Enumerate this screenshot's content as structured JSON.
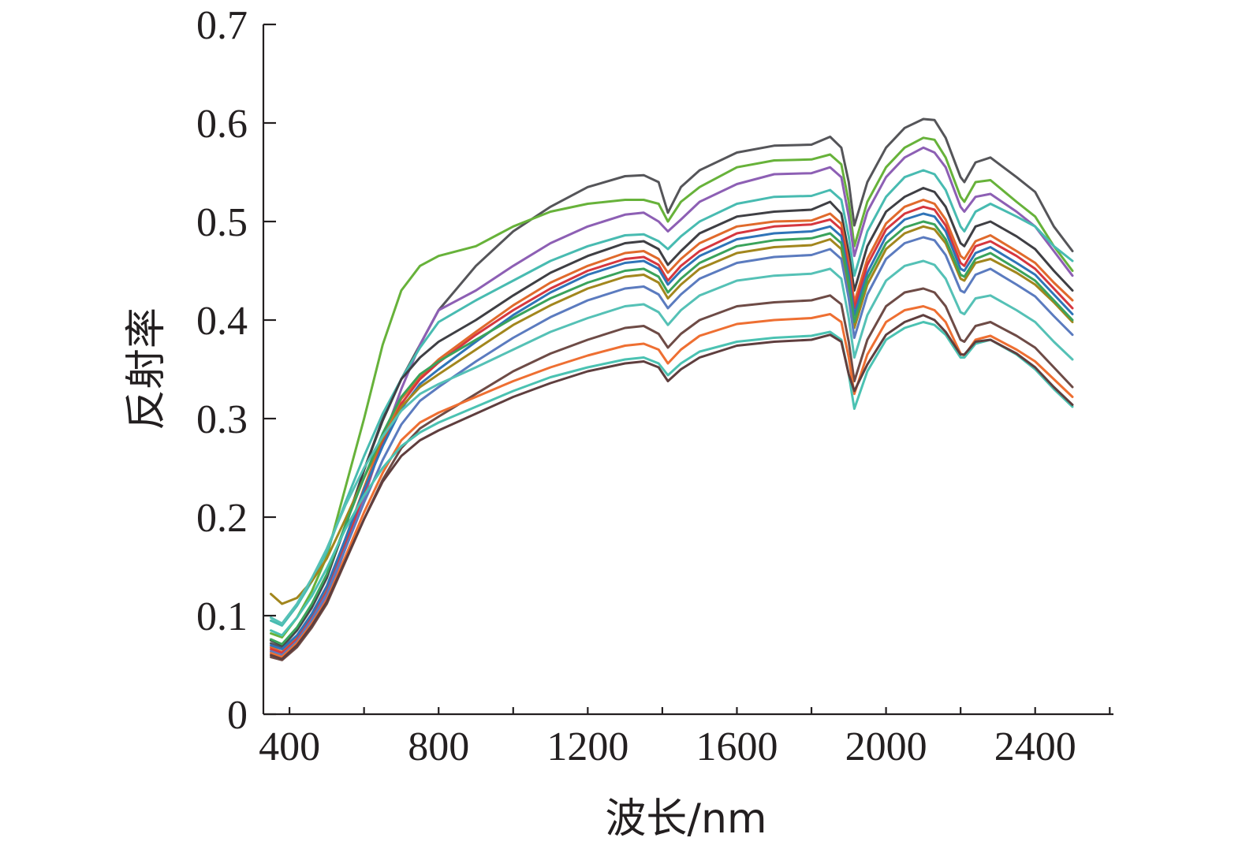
{
  "chart_data": {
    "type": "line",
    "title": "",
    "xlabel": "波长/nm",
    "ylabel": "反射率",
    "xlim": [
      330,
      2610
    ],
    "ylim": [
      0,
      0.7
    ],
    "x_tick_labels": [
      "400",
      "800",
      "1200",
      "1600",
      "2000",
      "2400"
    ],
    "x_tick_values": [
      400,
      800,
      1200,
      1600,
      2000,
      2400
    ],
    "x_minor_tick_values": [
      600,
      1000,
      1400,
      1800,
      2200,
      2600
    ],
    "y_tick_labels": [
      "0",
      "0.1",
      "0.2",
      "0.3",
      "0.4",
      "0.5",
      "0.6",
      "0.7"
    ],
    "y_tick_values": [
      0,
      0.1,
      0.2,
      0.3,
      0.4,
      0.5,
      0.6,
      0.7
    ],
    "grid": false,
    "legend": "none",
    "x": [
      350,
      380,
      420,
      460,
      500,
      550,
      600,
      650,
      700,
      750,
      800,
      900,
      1000,
      1100,
      1200,
      1300,
      1350,
      1390,
      1415,
      1450,
      1500,
      1600,
      1700,
      1800,
      1850,
      1880,
      1900,
      1915,
      1950,
      2000,
      2050,
      2100,
      2130,
      2160,
      2200,
      2210,
      2240,
      2280,
      2350,
      2400,
      2450,
      2500
    ],
    "series": [
      {
        "color": "#555559",
        "values": [
          0.072,
          0.068,
          0.085,
          0.108,
          0.138,
          0.192,
          0.248,
          0.3,
          0.34,
          0.375,
          0.41,
          0.455,
          0.49,
          0.515,
          0.535,
          0.546,
          0.547,
          0.54,
          0.509,
          0.535,
          0.552,
          0.57,
          0.577,
          0.578,
          0.586,
          0.575,
          0.54,
          0.496,
          0.54,
          0.575,
          0.595,
          0.604,
          0.603,
          0.585,
          0.545,
          0.54,
          0.56,
          0.565,
          0.545,
          0.53,
          0.495,
          0.47
        ]
      },
      {
        "color": "#67b23a",
        "values": [
          0.082,
          0.078,
          0.098,
          0.125,
          0.16,
          0.23,
          0.3,
          0.375,
          0.43,
          0.455,
          0.465,
          0.475,
          0.495,
          0.51,
          0.518,
          0.522,
          0.522,
          0.518,
          0.5,
          0.52,
          0.535,
          0.555,
          0.562,
          0.563,
          0.568,
          0.558,
          0.52,
          0.475,
          0.52,
          0.555,
          0.575,
          0.585,
          0.583,
          0.565,
          0.525,
          0.52,
          0.54,
          0.542,
          0.52,
          0.505,
          0.475,
          0.45
        ]
      },
      {
        "color": "#8d5fb4",
        "values": [
          0.062,
          0.058,
          0.072,
          0.092,
          0.118,
          0.168,
          0.22,
          0.278,
          0.33,
          0.375,
          0.41,
          0.43,
          0.455,
          0.478,
          0.495,
          0.507,
          0.509,
          0.5,
          0.49,
          0.502,
          0.52,
          0.538,
          0.548,
          0.549,
          0.555,
          0.545,
          0.505,
          0.465,
          0.51,
          0.545,
          0.565,
          0.575,
          0.57,
          0.555,
          0.515,
          0.51,
          0.525,
          0.528,
          0.51,
          0.495,
          0.47,
          0.445
        ]
      },
      {
        "color": "#48bbb1",
        "values": [
          0.095,
          0.09,
          0.11,
          0.135,
          0.165,
          0.215,
          0.262,
          0.305,
          0.34,
          0.372,
          0.398,
          0.42,
          0.44,
          0.46,
          0.475,
          0.486,
          0.487,
          0.48,
          0.472,
          0.485,
          0.5,
          0.518,
          0.525,
          0.526,
          0.532,
          0.522,
          0.485,
          0.445,
          0.49,
          0.525,
          0.545,
          0.552,
          0.548,
          0.532,
          0.495,
          0.49,
          0.51,
          0.518,
          0.505,
          0.495,
          0.475,
          0.46
        ]
      },
      {
        "color": "#3f3f44",
        "values": [
          0.075,
          0.07,
          0.086,
          0.11,
          0.14,
          0.19,
          0.248,
          0.298,
          0.34,
          0.362,
          0.378,
          0.4,
          0.425,
          0.448,
          0.465,
          0.478,
          0.48,
          0.472,
          0.456,
          0.47,
          0.488,
          0.505,
          0.51,
          0.512,
          0.52,
          0.508,
          0.468,
          0.43,
          0.475,
          0.51,
          0.525,
          0.534,
          0.53,
          0.515,
          0.478,
          0.475,
          0.495,
          0.5,
          0.485,
          0.472,
          0.45,
          0.43
        ]
      },
      {
        "color": "#e06a2c",
        "values": [
          0.068,
          0.063,
          0.078,
          0.1,
          0.128,
          0.178,
          0.23,
          0.28,
          0.32,
          0.342,
          0.36,
          0.388,
          0.415,
          0.438,
          0.455,
          0.468,
          0.47,
          0.462,
          0.448,
          0.462,
          0.478,
          0.495,
          0.5,
          0.501,
          0.508,
          0.498,
          0.458,
          0.418,
          0.462,
          0.498,
          0.515,
          0.522,
          0.518,
          0.502,
          0.465,
          0.462,
          0.48,
          0.486,
          0.47,
          0.458,
          0.438,
          0.42
        ]
      },
      {
        "color": "#d6373f",
        "values": [
          0.066,
          0.062,
          0.076,
          0.098,
          0.124,
          0.172,
          0.225,
          0.275,
          0.315,
          0.34,
          0.357,
          0.385,
          0.41,
          0.432,
          0.45,
          0.462,
          0.464,
          0.456,
          0.44,
          0.455,
          0.47,
          0.488,
          0.495,
          0.497,
          0.502,
          0.492,
          0.452,
          0.412,
          0.456,
          0.492,
          0.508,
          0.515,
          0.512,
          0.496,
          0.458,
          0.455,
          0.475,
          0.48,
          0.465,
          0.452,
          0.432,
          0.412
        ]
      },
      {
        "color": "#2f74b8",
        "values": [
          0.07,
          0.066,
          0.08,
          0.102,
          0.13,
          0.178,
          0.228,
          0.272,
          0.31,
          0.335,
          0.35,
          0.378,
          0.405,
          0.428,
          0.446,
          0.458,
          0.46,
          0.452,
          0.436,
          0.45,
          0.465,
          0.482,
          0.488,
          0.49,
          0.495,
          0.485,
          0.445,
          0.405,
          0.448,
          0.485,
          0.502,
          0.508,
          0.505,
          0.49,
          0.452,
          0.45,
          0.468,
          0.474,
          0.458,
          0.446,
          0.426,
          0.406
        ]
      },
      {
        "color": "#a2861d",
        "values": [
          0.122,
          0.112,
          0.118,
          0.135,
          0.158,
          0.198,
          0.24,
          0.28,
          0.312,
          0.332,
          0.345,
          0.37,
          0.395,
          0.415,
          0.432,
          0.444,
          0.446,
          0.438,
          0.422,
          0.436,
          0.452,
          0.468,
          0.474,
          0.476,
          0.482,
          0.472,
          0.432,
          0.392,
          0.436,
          0.472,
          0.488,
          0.495,
          0.492,
          0.478,
          0.442,
          0.44,
          0.458,
          0.462,
          0.448,
          0.436,
          0.418,
          0.398
        ]
      },
      {
        "color": "#3aa35b",
        "values": [
          0.076,
          0.071,
          0.088,
          0.112,
          0.142,
          0.192,
          0.24,
          0.285,
          0.322,
          0.345,
          0.358,
          0.38,
          0.402,
          0.422,
          0.438,
          0.45,
          0.452,
          0.444,
          0.428,
          0.442,
          0.458,
          0.475,
          0.481,
          0.483,
          0.488,
          0.478,
          0.438,
          0.398,
          0.442,
          0.478,
          0.494,
          0.5,
          0.497,
          0.482,
          0.446,
          0.444,
          0.462,
          0.468,
          0.452,
          0.44,
          0.42,
          0.4
        ]
      },
      {
        "color": "#5b7bbf",
        "values": [
          0.064,
          0.06,
          0.074,
          0.096,
          0.122,
          0.168,
          0.215,
          0.258,
          0.294,
          0.318,
          0.332,
          0.358,
          0.382,
          0.403,
          0.42,
          0.432,
          0.434,
          0.426,
          0.412,
          0.426,
          0.442,
          0.458,
          0.464,
          0.466,
          0.472,
          0.462,
          0.422,
          0.382,
          0.426,
          0.462,
          0.478,
          0.484,
          0.481,
          0.466,
          0.43,
          0.428,
          0.446,
          0.452,
          0.436,
          0.424,
          0.404,
          0.385
        ]
      },
      {
        "color": "#55c1b6",
        "values": [
          0.098,
          0.092,
          0.112,
          0.138,
          0.168,
          0.212,
          0.25,
          0.282,
          0.308,
          0.325,
          0.335,
          0.352,
          0.37,
          0.388,
          0.402,
          0.414,
          0.416,
          0.408,
          0.395,
          0.41,
          0.425,
          0.44,
          0.445,
          0.447,
          0.452,
          0.442,
          0.402,
          0.362,
          0.405,
          0.44,
          0.455,
          0.46,
          0.456,
          0.442,
          0.408,
          0.406,
          0.422,
          0.425,
          0.41,
          0.398,
          0.378,
          0.36
        ]
      },
      {
        "color": "#6e4b46",
        "values": [
          0.058,
          0.055,
          0.068,
          0.088,
          0.112,
          0.155,
          0.198,
          0.238,
          0.27,
          0.29,
          0.302,
          0.325,
          0.348,
          0.366,
          0.38,
          0.392,
          0.394,
          0.386,
          0.372,
          0.386,
          0.4,
          0.414,
          0.418,
          0.42,
          0.425,
          0.416,
          0.378,
          0.338,
          0.38,
          0.414,
          0.428,
          0.432,
          0.428,
          0.414,
          0.38,
          0.378,
          0.394,
          0.398,
          0.384,
          0.372,
          0.352,
          0.332
        ]
      },
      {
        "color": "#ee6f32",
        "values": [
          0.062,
          0.058,
          0.072,
          0.092,
          0.116,
          0.16,
          0.205,
          0.245,
          0.278,
          0.296,
          0.306,
          0.322,
          0.338,
          0.352,
          0.364,
          0.374,
          0.376,
          0.37,
          0.356,
          0.37,
          0.384,
          0.396,
          0.4,
          0.402,
          0.406,
          0.398,
          0.362,
          0.325,
          0.365,
          0.398,
          0.41,
          0.414,
          0.41,
          0.398,
          0.366,
          0.364,
          0.38,
          0.384,
          0.37,
          0.358,
          0.34,
          0.322
        ]
      },
      {
        "color": "#4bc2b2",
        "values": [
          0.085,
          0.08,
          0.098,
          0.12,
          0.148,
          0.188,
          0.222,
          0.25,
          0.272,
          0.286,
          0.296,
          0.312,
          0.328,
          0.342,
          0.352,
          0.36,
          0.362,
          0.356,
          0.344,
          0.356,
          0.368,
          0.378,
          0.382,
          0.384,
          0.388,
          0.38,
          0.345,
          0.31,
          0.348,
          0.38,
          0.392,
          0.398,
          0.395,
          0.385,
          0.362,
          0.362,
          0.376,
          0.38,
          0.365,
          0.35,
          0.33,
          0.312
        ]
      },
      {
        "color": "#5f3e3e",
        "values": [
          0.06,
          0.056,
          0.07,
          0.09,
          0.114,
          0.156,
          0.198,
          0.236,
          0.262,
          0.278,
          0.288,
          0.305,
          0.322,
          0.336,
          0.348,
          0.356,
          0.358,
          0.352,
          0.338,
          0.35,
          0.362,
          0.374,
          0.378,
          0.38,
          0.385,
          0.378,
          0.345,
          0.328,
          0.355,
          0.385,
          0.398,
          0.405,
          0.4,
          0.388,
          0.365,
          0.365,
          0.378,
          0.38,
          0.366,
          0.352,
          0.332,
          0.314
        ]
      }
    ]
  }
}
